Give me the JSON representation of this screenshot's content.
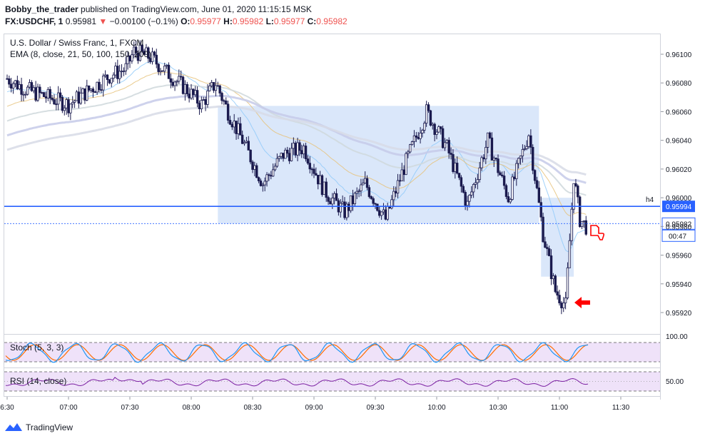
{
  "header": {
    "author": "Bobby_the_trader",
    "published_text": "published on TradingView.com, June 01, 2020 11:15:15 MSK",
    "symbol": "FX:USDCHF, 1",
    "last": "0.95981",
    "change": "−0.00100 (−0.1%)",
    "o_label": "O:",
    "o_val": "0.95977",
    "h_label": "H:",
    "h_val": "0.95982",
    "l_label": "L:",
    "l_val": "0.95977",
    "c_label": "C:",
    "c_val": "0.95982"
  },
  "pane": {
    "title": "U.S. Dollar / Swiss Franc, 1, FXCM",
    "ema_label": "EMA (8, close, 21, 50, 100, 150, 200)",
    "hline_label": "h4",
    "hline_price": "0.95994",
    "last_price": "0.95982",
    "countdown": "00:47",
    "stoch_label": "Stoch (5, 3, 3)",
    "stoch_scale": "100.00",
    "rsi_label": "RSI (14, close)",
    "rsi_scale": "50.00"
  },
  "colors": {
    "candle_up": "#ffffff",
    "candle_down": "#1a1a4e",
    "hline": "#2962ff",
    "zone": "#bbd3f5",
    "stoch_k": "#2196f3",
    "stoch_d": "#ff6d00",
    "rsi": "#7b1fa2",
    "osc_bg": "#e8d5f7",
    "marker": "#ff0000"
  },
  "footer": {
    "brand": "TradingView"
  },
  "chart_data": {
    "type": "candlestick",
    "x_ticks": [
      "6:30",
      "07:00",
      "07:30",
      "08:00",
      "08:30",
      "09:00",
      "09:30",
      "10:00",
      "10:30",
      "11:00",
      "11:30"
    ],
    "y_ticks": [
      0.961,
      0.9608,
      0.9606,
      0.9604,
      0.9602,
      0.96,
      0.9598,
      0.9596,
      0.9594,
      0.9592
    ],
    "ylim": [
      0.9591,
      0.9611
    ],
    "hline": 0.95994,
    "zones": [
      {
        "x_start": "08:13",
        "x_end": "10:50",
        "y_low": 0.95982,
        "y_high": 0.96064
      },
      {
        "x_start": "10:51",
        "x_end": "11:07",
        "y_low": 0.95945,
        "y_high": 0.96
      }
    ],
    "price_path": [
      [
        "06:30",
        0.96083
      ],
      [
        "06:40",
        0.96075
      ],
      [
        "06:50",
        0.9607
      ],
      [
        "07:00",
        0.96065
      ],
      [
        "07:10",
        0.96075
      ],
      [
        "07:20",
        0.96085
      ],
      [
        "07:28",
        0.9609
      ],
      [
        "07:32",
        0.96102
      ],
      [
        "07:40",
        0.96098
      ],
      [
        "07:50",
        0.96085
      ],
      [
        "07:58",
        0.96075
      ],
      [
        "08:05",
        0.96065
      ],
      [
        "08:12",
        0.9608
      ],
      [
        "08:18",
        0.9606
      ],
      [
        "08:25",
        0.9604
      ],
      [
        "08:35",
        0.9601
      ],
      [
        "08:45",
        0.9603
      ],
      [
        "08:55",
        0.96035
      ],
      [
        "09:05",
        0.96005
      ],
      [
        "09:15",
        0.9599
      ],
      [
        "09:25",
        0.9601
      ],
      [
        "09:35",
        0.95985
      ],
      [
        "09:45",
        0.96025
      ],
      [
        "09:55",
        0.9606
      ],
      [
        "10:05",
        0.96035
      ],
      [
        "10:15",
        0.95995
      ],
      [
        "10:25",
        0.9604
      ],
      [
        "10:35",
        0.96
      ],
      [
        "10:45",
        0.96045
      ],
      [
        "10:52",
        0.95975
      ],
      [
        "10:58",
        0.95935
      ],
      [
        "11:03",
        0.95925
      ],
      [
        "11:07",
        0.96015
      ],
      [
        "11:10",
        0.95985
      ],
      [
        "11:13",
        0.9598
      ]
    ]
  }
}
